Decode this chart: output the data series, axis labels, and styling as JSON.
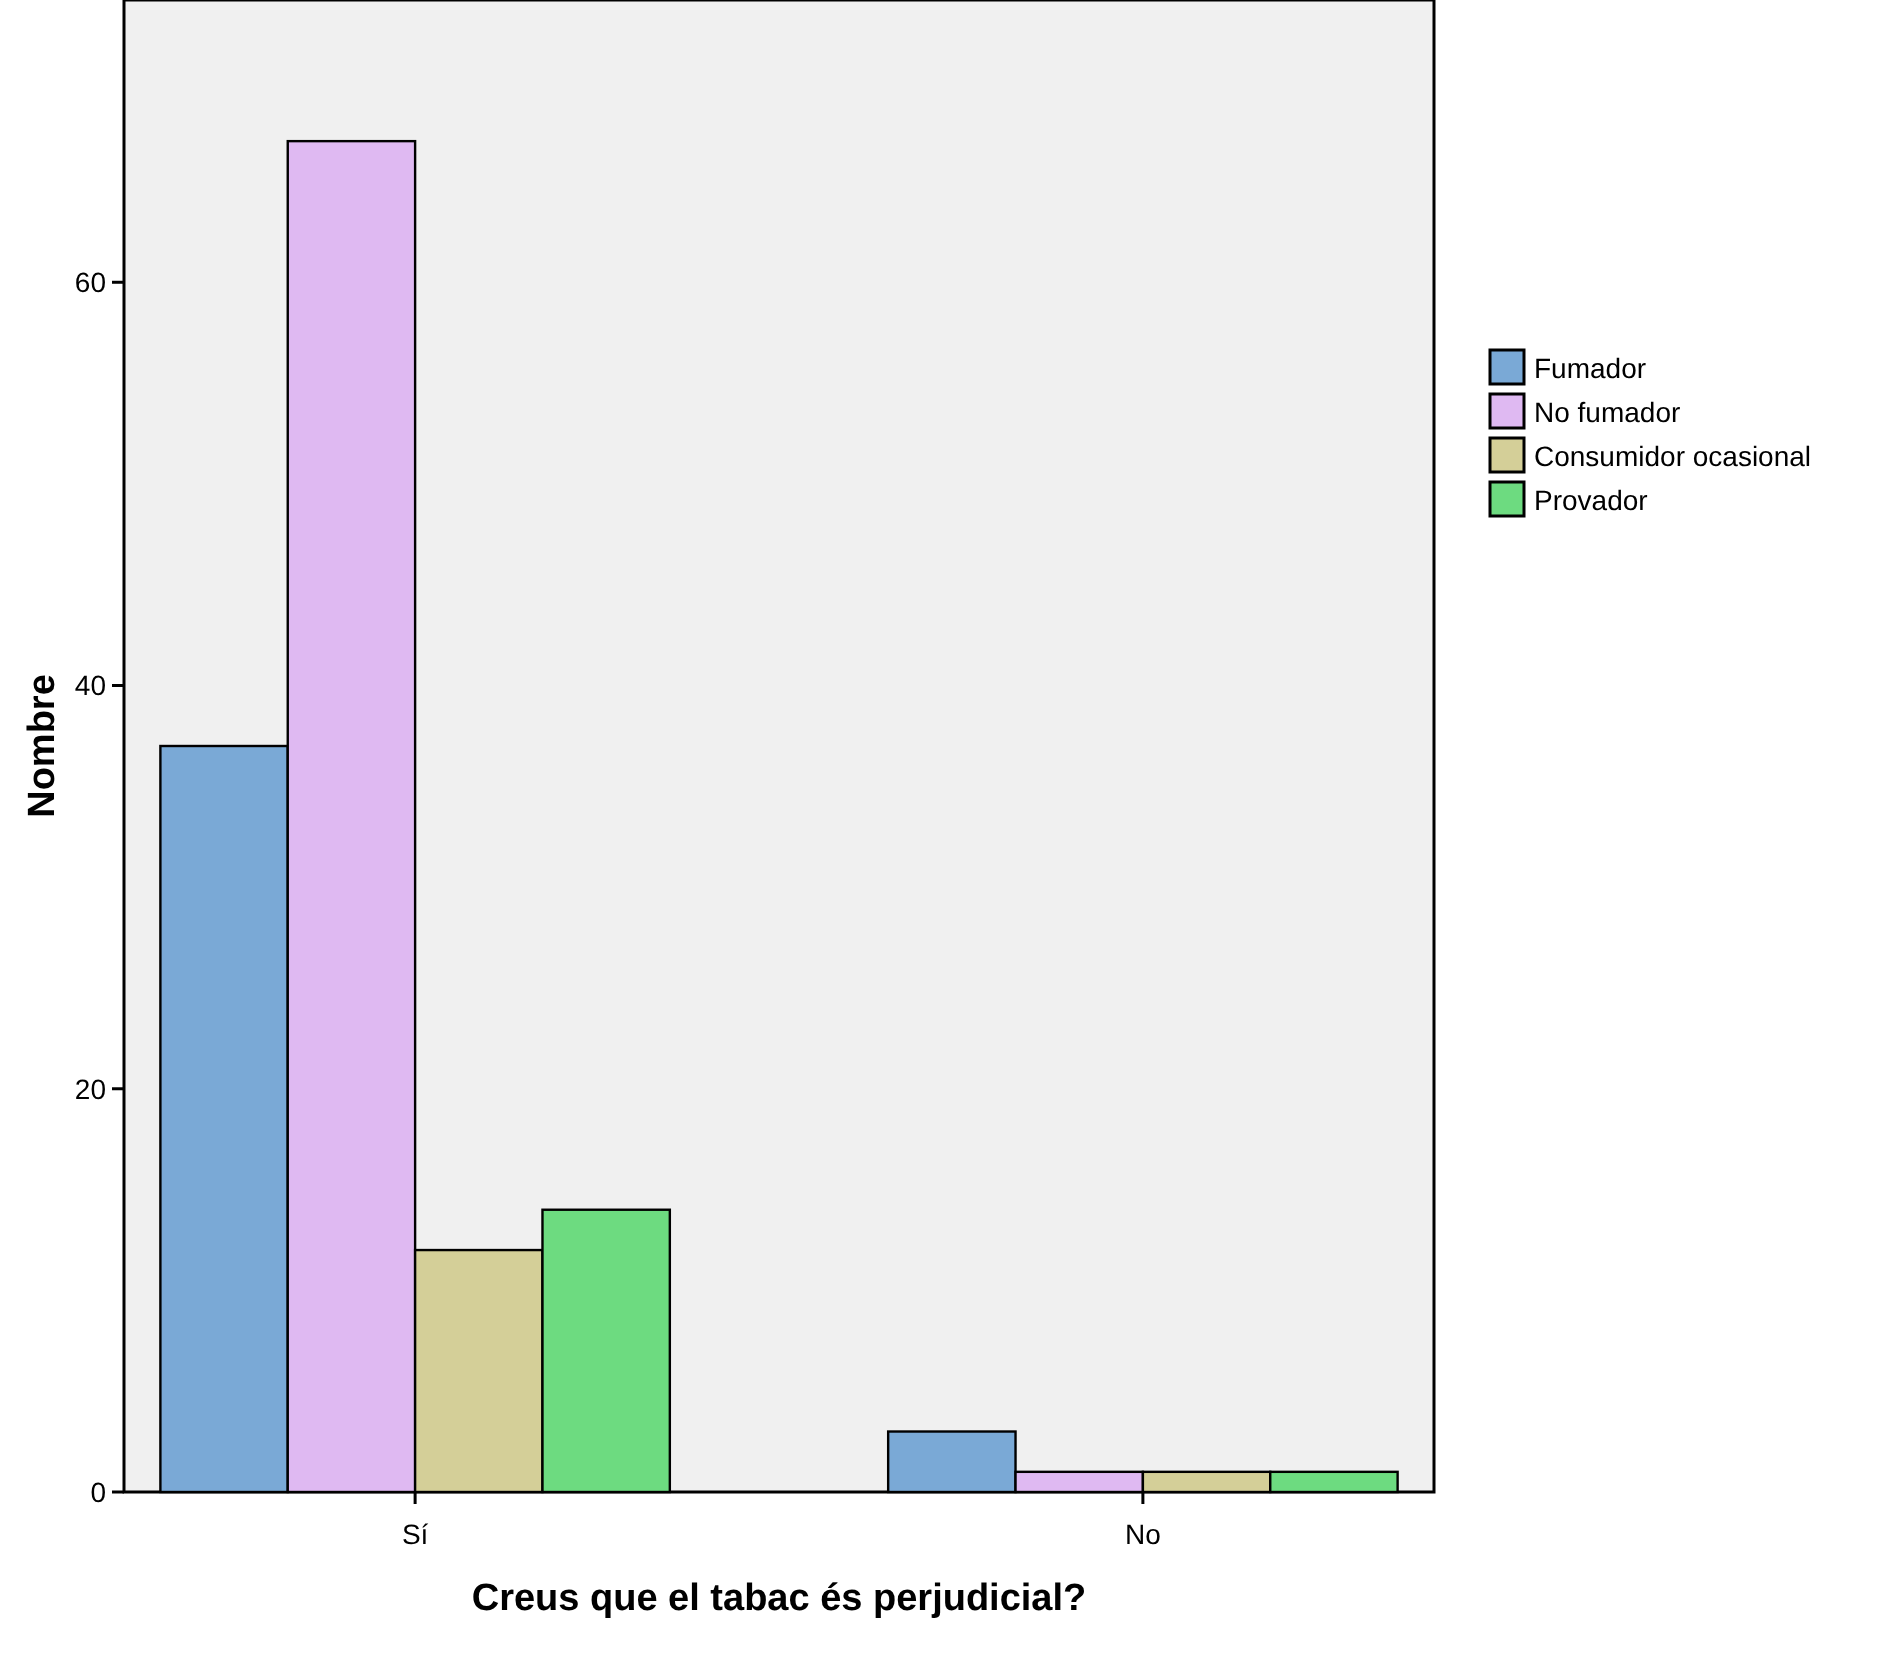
{
  "chart_data": {
    "type": "bar",
    "xlabel": "Creus que el tabac és perjudicial?",
    "ylabel": "Nombre",
    "categories": [
      "Sí",
      "No"
    ],
    "series": [
      {
        "name": "Fumador",
        "color": "#7aa9d6",
        "values": [
          37,
          3
        ]
      },
      {
        "name": "No fumador",
        "color": "#dfb9f2",
        "values": [
          67,
          1
        ]
      },
      {
        "name": "Consumidor ocasional",
        "color": "#d4cf98",
        "values": [
          12,
          1
        ]
      },
      {
        "name": "Provador",
        "color": "#6ddb80",
        "values": [
          14,
          1
        ]
      }
    ],
    "ylim": [
      0,
      74
    ],
    "yticks": [
      0,
      20,
      40,
      60
    ],
    "legend": "right",
    "grid": false
  }
}
